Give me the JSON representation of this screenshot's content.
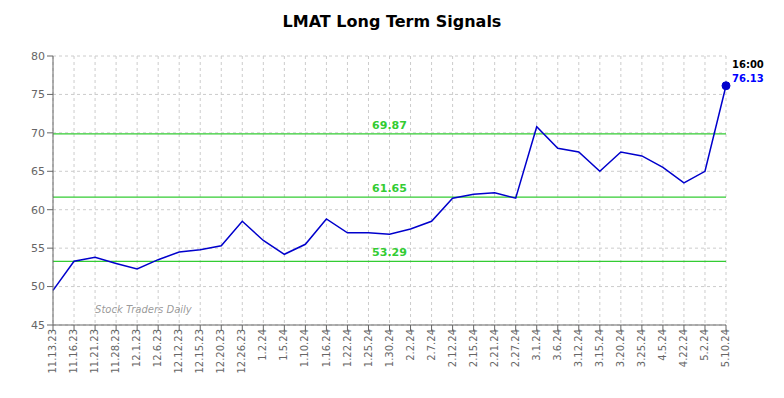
{
  "chart_data": {
    "type": "line",
    "title": "LMAT Long Term Signals",
    "categories": [
      "11.13.23",
      "11.16.23",
      "11.21.23",
      "11.28.23",
      "12.1.23",
      "12.6.23",
      "12.12.23",
      "12.15.23",
      "12.20.23",
      "12.26.23",
      "1.2.24",
      "1.5.24",
      "1.10.24",
      "1.16.24",
      "1.22.24",
      "1.25.24",
      "1.30.24",
      "2.2.24",
      "2.7.24",
      "2.12.24",
      "2.15.24",
      "2.21.24",
      "2.27.24",
      "3.1.24",
      "3.6.24",
      "3.12.24",
      "3.15.24",
      "3.20.24",
      "3.25.24",
      "4.5.24",
      "4.22.24",
      "5.2.24",
      "5.10.24"
    ],
    "values": [
      49.5,
      53.3,
      53.8,
      53.0,
      52.3,
      53.5,
      54.5,
      54.8,
      55.3,
      58.5,
      56.0,
      54.2,
      55.5,
      58.8,
      57.0,
      57.0,
      56.8,
      57.5,
      58.5,
      61.5,
      62.0,
      62.2,
      61.5,
      70.8,
      68.0,
      67.5,
      65.0,
      67.5,
      67.0,
      65.5,
      63.5,
      65.0,
      76.13
    ],
    "color": "#0000cc",
    "ylim": [
      45,
      80
    ],
    "yticks": [
      45,
      50,
      55,
      60,
      65,
      70,
      75,
      80
    ],
    "grid": true,
    "reference_lines": [
      {
        "y": 53.29,
        "label": "53.29",
        "color": "#33cc33"
      },
      {
        "y": 61.65,
        "label": "61.65",
        "color": "#33cc33"
      },
      {
        "y": 69.87,
        "label": "69.87",
        "color": "#33cc33"
      }
    ],
    "annotations": [
      {
        "text": "16:00",
        "x": "5.10.24",
        "y": 76.13,
        "color": "black"
      },
      {
        "text": "76.13",
        "x": "5.10.24",
        "y": 76.13,
        "color": "blue"
      },
      {
        "text": "Stock Traders Daily",
        "x": "11.21.23",
        "y": 46.5,
        "color": "gray"
      }
    ]
  }
}
